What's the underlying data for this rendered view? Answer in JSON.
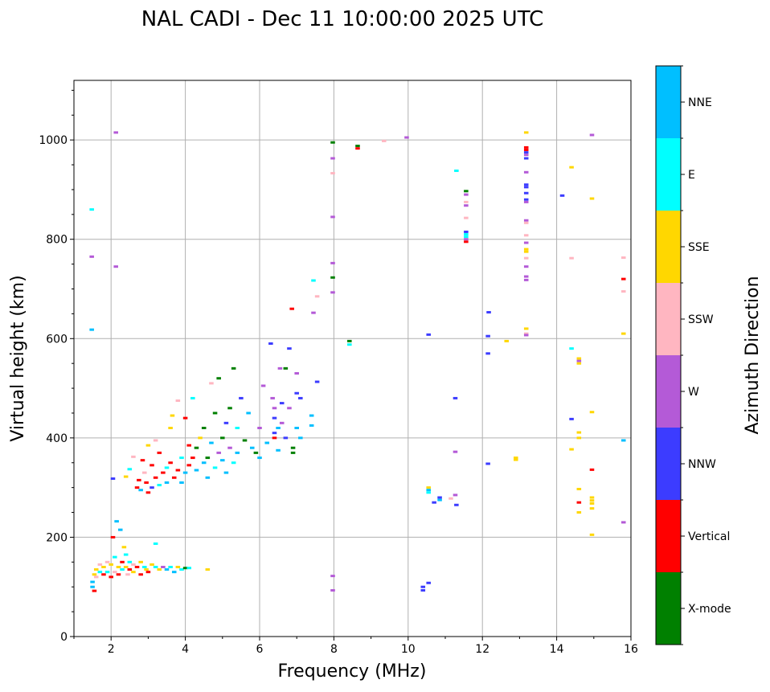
{
  "chart_data": {
    "type": "scatter",
    "title": "NAL CADI - Dec 11 10:00:00 2025 UTC",
    "xlabel": "Frequency (MHz)",
    "ylabel": "Virtual height (km)",
    "xlim": [
      1,
      16
    ],
    "ylim": [
      0,
      1120
    ],
    "xticks": [
      2,
      4,
      6,
      8,
      10,
      12,
      14,
      16
    ],
    "yticks": [
      0,
      200,
      400,
      600,
      800,
      1000
    ],
    "grid": true,
    "colorbar": {
      "label": "Azimuth Direction",
      "categories": [
        {
          "name": "X-mode",
          "color": "#008000"
        },
        {
          "name": "Vertical",
          "color": "#ff0000"
        },
        {
          "name": "NNW",
          "color": "#3c3cff"
        },
        {
          "name": "W",
          "color": "#b45ad7"
        },
        {
          "name": "SSW",
          "color": "#ffb6c1"
        },
        {
          "name": "SSE",
          "color": "#ffd700"
        },
        {
          "name": "E",
          "color": "#00ffff"
        },
        {
          "name": "NNE",
          "color": "#00bfff"
        }
      ]
    },
    "point_format": [
      "frequency_mhz",
      "height_km",
      "direction_index"
    ],
    "points": [
      [
        1.48,
        860,
        6
      ],
      [
        1.48,
        765,
        3
      ],
      [
        1.48,
        618,
        7
      ],
      [
        2.13,
        1015,
        3
      ],
      [
        2.13,
        745,
        3
      ],
      [
        7.97,
        995,
        0
      ],
      [
        7.97,
        963,
        3
      ],
      [
        7.97,
        933,
        4
      ],
      [
        7.97,
        845,
        3
      ],
      [
        7.97,
        752,
        3
      ],
      [
        7.97,
        723,
        0
      ],
      [
        7.97,
        693,
        3
      ],
      [
        7.97,
        122,
        3
      ],
      [
        7.97,
        93,
        3
      ],
      [
        8.64,
        988,
        0
      ],
      [
        8.64,
        983,
        1
      ],
      [
        9.35,
        998,
        4
      ],
      [
        9.96,
        1005,
        3
      ],
      [
        7.45,
        717,
        6
      ],
      [
        7.55,
        685,
        4
      ],
      [
        6.87,
        660,
        1
      ],
      [
        7.45,
        652,
        3
      ],
      [
        8.42,
        595,
        0
      ],
      [
        8.42,
        588,
        6
      ],
      [
        7.55,
        513,
        2
      ],
      [
        11.3,
        938,
        6
      ],
      [
        11.56,
        897,
        0
      ],
      [
        11.56,
        890,
        3
      ],
      [
        11.56,
        875,
        4
      ],
      [
        11.56,
        868,
        3
      ],
      [
        11.56,
        843,
        4
      ],
      [
        11.56,
        815,
        2
      ],
      [
        11.56,
        810,
        6
      ],
      [
        11.56,
        805,
        6
      ],
      [
        11.56,
        800,
        3
      ],
      [
        11.56,
        795,
        1
      ],
      [
        12.17,
        653,
        2
      ],
      [
        12.15,
        605,
        2
      ],
      [
        12.15,
        570,
        2
      ],
      [
        12.15,
        348,
        2
      ],
      [
        12.65,
        595,
        5
      ],
      [
        13.18,
        1015,
        5
      ],
      [
        13.18,
        985,
        1
      ],
      [
        13.18,
        980,
        1
      ],
      [
        13.18,
        975,
        2
      ],
      [
        13.18,
        970,
        3
      ],
      [
        13.18,
        963,
        2
      ],
      [
        13.18,
        935,
        3
      ],
      [
        13.18,
        910,
        2
      ],
      [
        13.18,
        905,
        2
      ],
      [
        13.18,
        893,
        2
      ],
      [
        13.18,
        880,
        2
      ],
      [
        13.18,
        875,
        3
      ],
      [
        13.18,
        838,
        3
      ],
      [
        13.18,
        833,
        4
      ],
      [
        13.18,
        808,
        4
      ],
      [
        13.18,
        793,
        3
      ],
      [
        13.18,
        780,
        5
      ],
      [
        13.18,
        775,
        5
      ],
      [
        13.18,
        762,
        4
      ],
      [
        13.18,
        745,
        3
      ],
      [
        13.18,
        725,
        3
      ],
      [
        13.18,
        718,
        3
      ],
      [
        13.18,
        620,
        5
      ],
      [
        13.18,
        610,
        4
      ],
      [
        13.18,
        607,
        3
      ],
      [
        14.15,
        888,
        2
      ],
      [
        14.4,
        945,
        5
      ],
      [
        14.4,
        762,
        4
      ],
      [
        14.4,
        580,
        6
      ],
      [
        14.4,
        438,
        2
      ],
      [
        14.4,
        377,
        5
      ],
      [
        14.6,
        560,
        5
      ],
      [
        14.6,
        555,
        3
      ],
      [
        14.6,
        550,
        5
      ],
      [
        14.6,
        411,
        5
      ],
      [
        14.6,
        400,
        5
      ],
      [
        14.6,
        297,
        5
      ],
      [
        14.6,
        270,
        1
      ],
      [
        14.6,
        250,
        5
      ],
      [
        14.95,
        1010,
        3
      ],
      [
        14.95,
        882,
        5
      ],
      [
        14.95,
        452,
        5
      ],
      [
        14.95,
        336,
        1
      ],
      [
        14.95,
        280,
        5
      ],
      [
        14.95,
        274,
        5
      ],
      [
        14.95,
        268,
        5
      ],
      [
        14.95,
        258,
        5
      ],
      [
        14.95,
        205,
        5
      ],
      [
        15.8,
        763,
        4
      ],
      [
        15.8,
        720,
        1
      ],
      [
        15.8,
        695,
        4
      ],
      [
        15.8,
        610,
        5
      ],
      [
        15.8,
        395,
        7
      ],
      [
        15.8,
        230,
        3
      ],
      [
        10.55,
        608,
        2
      ],
      [
        10.55,
        300,
        5
      ],
      [
        10.55,
        295,
        7
      ],
      [
        10.55,
        290,
        6
      ],
      [
        10.85,
        280,
        2
      ],
      [
        10.85,
        275,
        7
      ],
      [
        10.7,
        270,
        2
      ],
      [
        10.4,
        93,
        2
      ],
      [
        10.4,
        100,
        2
      ],
      [
        10.55,
        108,
        2
      ],
      [
        11.27,
        480,
        2
      ],
      [
        11.27,
        372,
        3
      ],
      [
        11.27,
        285,
        3
      ],
      [
        11.15,
        278,
        4
      ],
      [
        11.3,
        265,
        2
      ],
      [
        12.9,
        360,
        5
      ],
      [
        12.9,
        356,
        5
      ],
      [
        1.5,
        100,
        7
      ],
      [
        1.5,
        110,
        7
      ],
      [
        1.55,
        92,
        1
      ],
      [
        1.55,
        125,
        5
      ],
      [
        1.6,
        120,
        4
      ],
      [
        1.6,
        135,
        5
      ],
      [
        1.7,
        130,
        6
      ],
      [
        1.7,
        145,
        4
      ],
      [
        1.8,
        125,
        1
      ],
      [
        1.8,
        140,
        5
      ],
      [
        1.9,
        150,
        4
      ],
      [
        1.9,
        130,
        6
      ],
      [
        2.0,
        120,
        1
      ],
      [
        2.0,
        145,
        5
      ],
      [
        2.05,
        200,
        1
      ],
      [
        2.1,
        160,
        6
      ],
      [
        2.1,
        130,
        4
      ],
      [
        2.15,
        232,
        7
      ],
      [
        2.2,
        140,
        5
      ],
      [
        2.2,
        125,
        1
      ],
      [
        2.25,
        215,
        7
      ],
      [
        2.3,
        150,
        1
      ],
      [
        2.3,
        135,
        6
      ],
      [
        2.35,
        180,
        5
      ],
      [
        2.4,
        140,
        5
      ],
      [
        2.4,
        165,
        6
      ],
      [
        2.45,
        125,
        4
      ],
      [
        2.5,
        150,
        6
      ],
      [
        2.5,
        135,
        1
      ],
      [
        2.6,
        145,
        4
      ],
      [
        2.6,
        130,
        5
      ],
      [
        2.7,
        140,
        1
      ],
      [
        2.8,
        150,
        5
      ],
      [
        2.8,
        125,
        1
      ],
      [
        2.9,
        140,
        6
      ],
      [
        2.95,
        135,
        5
      ],
      [
        3.0,
        130,
        1
      ],
      [
        3.1,
        145,
        5
      ],
      [
        3.2,
        140,
        6
      ],
      [
        3.2,
        187,
        6
      ],
      [
        3.3,
        135,
        5
      ],
      [
        3.4,
        140,
        3
      ],
      [
        3.5,
        135,
        7
      ],
      [
        3.6,
        140,
        6
      ],
      [
        3.7,
        130,
        7
      ],
      [
        3.8,
        140,
        5
      ],
      [
        3.9,
        135,
        6
      ],
      [
        4.0,
        138,
        0
      ],
      [
        4.1,
        138,
        6
      ],
      [
        4.6,
        135,
        5
      ],
      [
        2.05,
        318,
        2
      ],
      [
        2.4,
        322,
        5
      ],
      [
        2.5,
        337,
        6
      ],
      [
        2.6,
        362,
        4
      ],
      [
        2.7,
        300,
        1
      ],
      [
        2.75,
        315,
        1
      ],
      [
        2.8,
        295,
        7
      ],
      [
        2.85,
        355,
        1
      ],
      [
        2.9,
        330,
        4
      ],
      [
        2.95,
        310,
        1
      ],
      [
        3.0,
        385,
        5
      ],
      [
        3.0,
        290,
        1
      ],
      [
        3.1,
        300,
        2
      ],
      [
        3.1,
        345,
        1
      ],
      [
        3.2,
        320,
        1
      ],
      [
        3.2,
        395,
        4
      ],
      [
        3.3,
        305,
        6
      ],
      [
        3.3,
        370,
        1
      ],
      [
        3.4,
        330,
        1
      ],
      [
        3.5,
        340,
        6
      ],
      [
        3.5,
        310,
        7
      ],
      [
        3.6,
        350,
        1
      ],
      [
        3.6,
        420,
        5
      ],
      [
        3.65,
        445,
        5
      ],
      [
        3.7,
        320,
        1
      ],
      [
        3.8,
        475,
        4
      ],
      [
        3.8,
        335,
        1
      ],
      [
        3.9,
        360,
        6
      ],
      [
        3.9,
        310,
        7
      ],
      [
        4.0,
        440,
        1
      ],
      [
        4.0,
        330,
        7
      ],
      [
        4.1,
        385,
        1
      ],
      [
        4.1,
        345,
        1
      ],
      [
        4.2,
        480,
        6
      ],
      [
        4.2,
        360,
        1
      ],
      [
        4.3,
        335,
        7
      ],
      [
        4.3,
        380,
        0
      ],
      [
        4.4,
        400,
        5
      ],
      [
        4.5,
        350,
        7
      ],
      [
        4.5,
        420,
        0
      ],
      [
        4.6,
        360,
        0
      ],
      [
        4.6,
        320,
        7
      ],
      [
        4.7,
        510,
        4
      ],
      [
        4.7,
        390,
        7
      ],
      [
        4.8,
        450,
        0
      ],
      [
        4.8,
        340,
        6
      ],
      [
        4.9,
        370,
        3
      ],
      [
        4.9,
        520,
        0
      ],
      [
        5.0,
        400,
        0
      ],
      [
        5.0,
        355,
        7
      ],
      [
        5.1,
        430,
        2
      ],
      [
        5.1,
        330,
        7
      ],
      [
        5.2,
        460,
        0
      ],
      [
        5.2,
        380,
        3
      ],
      [
        5.3,
        540,
        0
      ],
      [
        5.3,
        350,
        6
      ],
      [
        5.4,
        420,
        6
      ],
      [
        5.4,
        370,
        7
      ],
      [
        5.5,
        480,
        2
      ],
      [
        5.6,
        395,
        0
      ],
      [
        5.7,
        450,
        7
      ],
      [
        5.8,
        380,
        7
      ],
      [
        5.9,
        370,
        0
      ],
      [
        6.0,
        420,
        3
      ],
      [
        6.0,
        360,
        7
      ],
      [
        6.1,
        505,
        3
      ],
      [
        6.2,
        390,
        7
      ],
      [
        6.3,
        590,
        2
      ],
      [
        6.35,
        480,
        3
      ],
      [
        6.4,
        460,
        3
      ],
      [
        6.4,
        440,
        2
      ],
      [
        6.4,
        410,
        2
      ],
      [
        6.4,
        400,
        1
      ],
      [
        6.5,
        375,
        7
      ],
      [
        6.5,
        420,
        7
      ],
      [
        6.55,
        540,
        3
      ],
      [
        6.6,
        470,
        2
      ],
      [
        6.6,
        430,
        3
      ],
      [
        6.7,
        540,
        0
      ],
      [
        6.7,
        400,
        2
      ],
      [
        6.8,
        580,
        2
      ],
      [
        6.8,
        460,
        3
      ],
      [
        6.9,
        370,
        0
      ],
      [
        6.9,
        380,
        0
      ],
      [
        7.0,
        530,
        3
      ],
      [
        7.0,
        490,
        2
      ],
      [
        7.0,
        420,
        7
      ],
      [
        7.1,
        400,
        7
      ],
      [
        7.1,
        480,
        2
      ],
      [
        7.4,
        445,
        7
      ],
      [
        7.4,
        425,
        7
      ]
    ]
  }
}
